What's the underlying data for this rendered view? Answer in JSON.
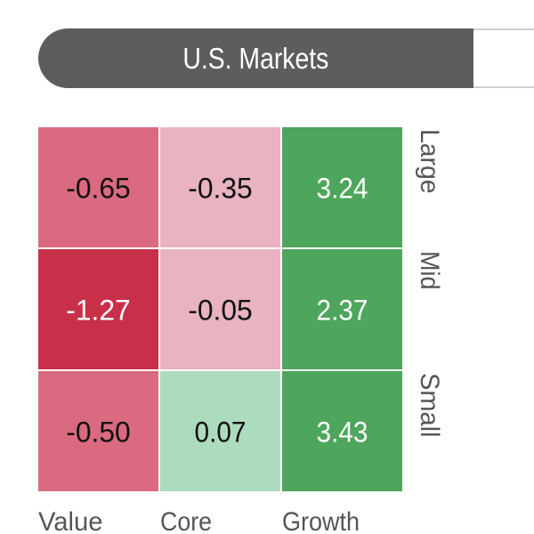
{
  "header": {
    "active_tab_label": "U.S. Markets"
  },
  "chart_data": {
    "type": "heatmap",
    "columns": [
      "Value",
      "Core",
      "Growth"
    ],
    "rows": [
      "Large",
      "Mid",
      "Small"
    ],
    "values": [
      [
        -0.65,
        -0.35,
        3.24
      ],
      [
        -1.27,
        -0.05,
        2.37
      ],
      [
        -0.5,
        0.07,
        3.43
      ]
    ],
    "value_labels": [
      [
        "-0.65",
        "-0.35",
        "3.24"
      ],
      [
        "-1.27",
        "-0.05",
        "2.37"
      ],
      [
        "-0.50",
        "0.07",
        "3.43"
      ]
    ],
    "colors": {
      "strong_negative": "#c8304a",
      "medium_negative": "#d96a80",
      "light_negative": "#e9b3c1",
      "light_positive": "#acdbbd",
      "strong_positive": "#4ea55c"
    }
  }
}
